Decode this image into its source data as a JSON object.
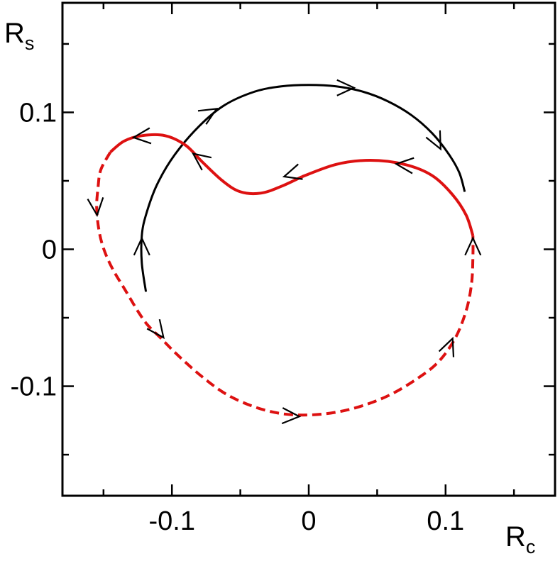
{
  "chart_data": {
    "type": "line",
    "title": "",
    "xlabel": "R",
    "xlabel_sub": "c",
    "ylabel": "R",
    "ylabel_sub": "s",
    "xlim": [
      -0.18,
      0.18
    ],
    "ylim": [
      -0.18,
      0.18
    ],
    "x_major_ticks": [
      -0.1,
      0,
      0.1
    ],
    "x_tick_labels": [
      "-0.1",
      "0",
      "0.1"
    ],
    "x_minor_ticks": [
      -0.15,
      -0.05,
      0.05,
      0.15
    ],
    "y_major_ticks": [
      -0.1,
      0,
      0.1
    ],
    "y_tick_labels": [
      "-0.1",
      "0",
      "0.1"
    ],
    "y_minor_ticks": [
      -0.15,
      -0.05,
      0.05,
      0.15
    ],
    "grid": false,
    "legend": "none",
    "series": [
      {
        "color": "#000000",
        "style": "solid",
        "points": [
          [
            -0.119,
            -0.031
          ],
          [
            -0.122,
            -0.01
          ],
          [
            -0.122,
            0.01
          ],
          [
            -0.119,
            0.025
          ],
          [
            -0.111,
            0.047
          ],
          [
            -0.098,
            0.069
          ],
          [
            -0.08,
            0.09
          ],
          [
            -0.062,
            0.105
          ],
          [
            -0.04,
            0.115
          ],
          [
            -0.02,
            0.119
          ],
          [
            0.0,
            0.12
          ],
          [
            0.02,
            0.119
          ],
          [
            0.04,
            0.115
          ],
          [
            0.058,
            0.108
          ],
          [
            0.075,
            0.098
          ],
          [
            0.09,
            0.085
          ],
          [
            0.102,
            0.07
          ],
          [
            0.11,
            0.056
          ],
          [
            0.114,
            0.042
          ]
        ],
        "arrows": [
          {
            "at": [
              -0.122,
              0.005
            ],
            "dir": [
              0,
              1
            ]
          },
          {
            "at": [
              -0.07,
              0.101
            ],
            "dir": [
              1,
              0.6
            ]
          },
          {
            "at": [
              0.03,
              0.118
            ],
            "dir": [
              1,
              0
            ]
          },
          {
            "at": [
              0.095,
              0.076
            ],
            "dir": [
              0.5,
              -1
            ]
          }
        ]
      },
      {
        "color": "#dd1111",
        "style": "solid",
        "points": [
          [
            -0.005,
            0.053
          ],
          [
            0.02,
            0.062
          ],
          [
            0.045,
            0.065
          ],
          [
            0.07,
            0.062
          ],
          [
            0.09,
            0.054
          ],
          [
            0.105,
            0.04
          ],
          [
            0.115,
            0.025
          ],
          [
            0.12,
            0.01
          ]
        ],
        "arrows": []
      },
      {
        "color": "#dd1111",
        "style": "solid",
        "points": [
          [
            -0.005,
            0.053
          ],
          [
            -0.02,
            0.046
          ],
          [
            -0.035,
            0.041
          ],
          [
            -0.05,
            0.042
          ],
          [
            -0.063,
            0.05
          ],
          [
            -0.078,
            0.064
          ],
          [
            -0.09,
            0.076
          ],
          [
            -0.105,
            0.083
          ],
          [
            -0.122,
            0.083
          ],
          [
            -0.135,
            0.079
          ],
          [
            -0.145,
            0.071
          ]
        ],
        "arrows": [
          {
            "at": [
              -0.015,
              0.054
            ],
            "dir": [
              -1,
              -0.3
            ]
          },
          {
            "at": [
              -0.082,
              0.068
            ],
            "dir": [
              -0.8,
              0.6
            ]
          },
          {
            "at": [
              -0.125,
              0.082
            ],
            "dir": [
              -1,
              -0.1
            ]
          }
        ]
      },
      {
        "color": "#dd1111",
        "style": "dashed",
        "points": [
          [
            -0.145,
            0.071
          ],
          [
            -0.152,
            0.058
          ],
          [
            -0.154,
            0.045
          ],
          [
            -0.155,
            0.03
          ],
          [
            -0.153,
            0.012
          ],
          [
            -0.149,
            -0.002
          ],
          [
            -0.143,
            -0.015
          ],
          [
            -0.134,
            -0.03
          ],
          [
            -0.125,
            -0.045
          ],
          [
            -0.118,
            -0.055
          ],
          [
            -0.108,
            -0.065
          ],
          [
            -0.095,
            -0.078
          ],
          [
            -0.078,
            -0.093
          ],
          [
            -0.06,
            -0.106
          ],
          [
            -0.04,
            -0.115
          ],
          [
            -0.02,
            -0.12
          ],
          [
            0.0,
            -0.121
          ],
          [
            0.02,
            -0.119
          ],
          [
            0.04,
            -0.114
          ],
          [
            0.06,
            -0.106
          ],
          [
            0.08,
            -0.094
          ],
          [
            0.095,
            -0.082
          ],
          [
            0.107,
            -0.065
          ],
          [
            0.115,
            -0.045
          ],
          [
            0.119,
            -0.025
          ],
          [
            0.12,
            -0.005
          ],
          [
            0.12,
            0.01
          ]
        ],
        "arrows": [
          {
            "at": [
              -0.155,
              0.028
            ],
            "dir": [
              0.1,
              -1
            ]
          },
          {
            "at": [
              -0.108,
              -0.062
            ],
            "dir": [
              0.6,
              -0.8
            ]
          },
          {
            "at": [
              -0.01,
              -0.122
            ],
            "dir": [
              1,
              -0.05
            ]
          },
          {
            "at": [
              0.104,
              -0.068
            ],
            "dir": [
              0.4,
              1
            ]
          },
          {
            "at": [
              0.12,
              0.005
            ],
            "dir": [
              0,
              1
            ]
          },
          {
            "at": [
              0.067,
              0.062
            ],
            "dir": [
              -1,
              0.1
            ]
          }
        ]
      }
    ]
  }
}
